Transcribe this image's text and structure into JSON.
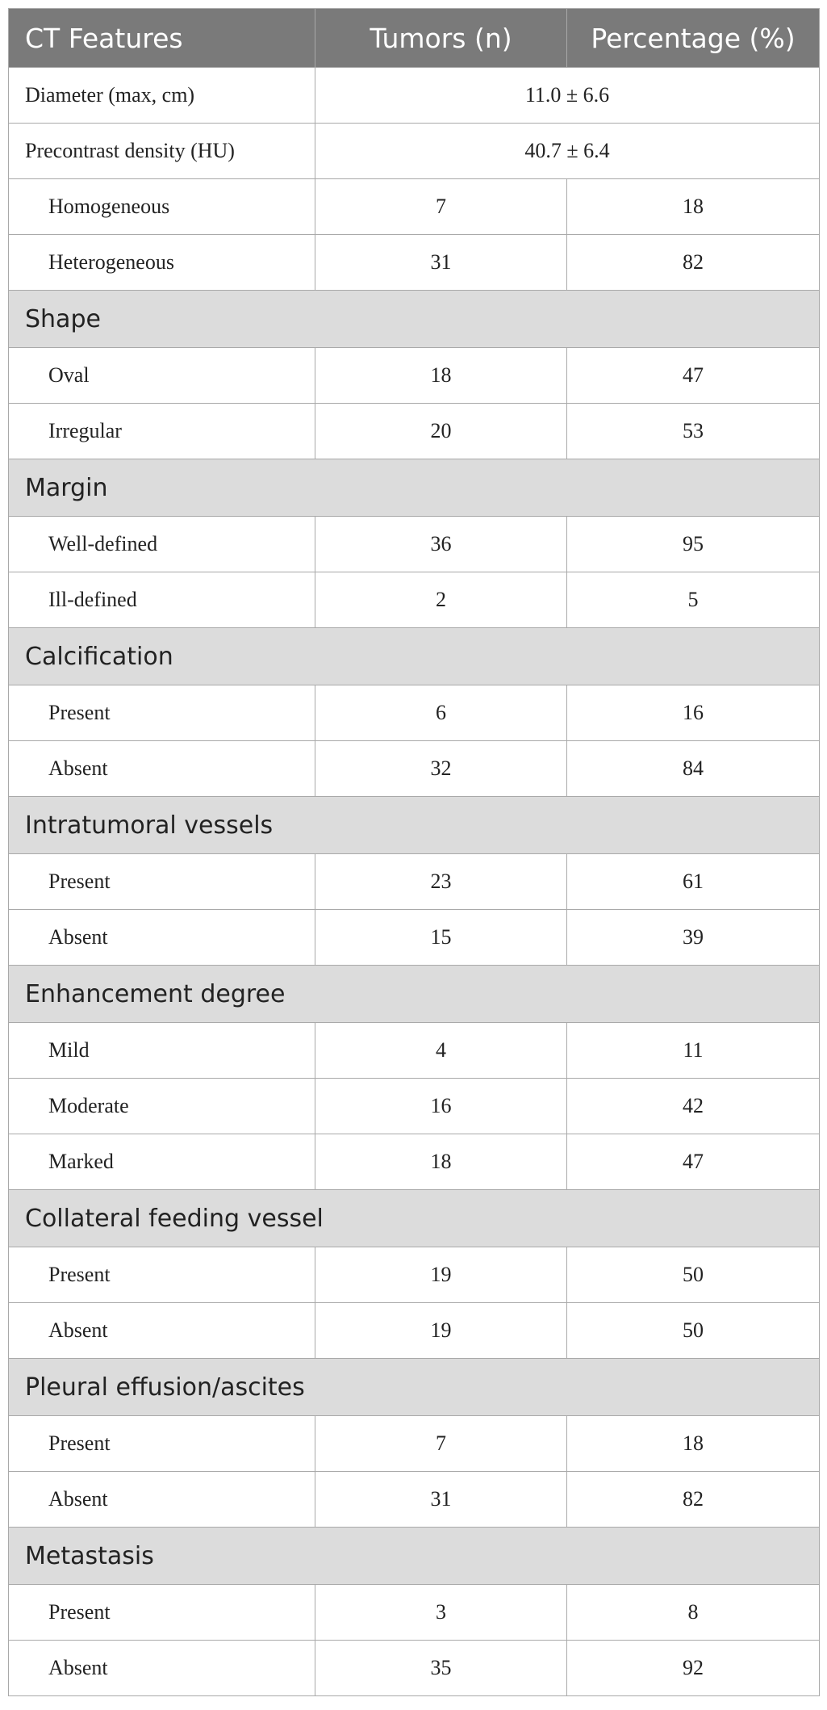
{
  "table": {
    "headers": [
      "CT Features",
      "Tumors (n)",
      "Percentage (%)"
    ],
    "summary_rows": [
      {
        "label": "Diameter (max, cm)",
        "value": "11.0 ± 6.6"
      },
      {
        "label": "Precontrast density (HU)",
        "value": "40.7 ± 6.4"
      }
    ],
    "density_rows": [
      {
        "label": "Homogeneous",
        "n": "7",
        "pct": "18"
      },
      {
        "label": "Heterogeneous",
        "n": "31",
        "pct": "82"
      }
    ],
    "groups": [
      {
        "title": "Shape",
        "rows": [
          {
            "label": "Oval",
            "n": "18",
            "pct": "47"
          },
          {
            "label": "Irregular",
            "n": "20",
            "pct": "53"
          }
        ]
      },
      {
        "title": "Margin",
        "rows": [
          {
            "label": "Well-defined",
            "n": "36",
            "pct": "95"
          },
          {
            "label": "Ill-defined",
            "n": "2",
            "pct": "5"
          }
        ]
      },
      {
        "title": "Calcification",
        "rows": [
          {
            "label": "Present",
            "n": "6",
            "pct": "16"
          },
          {
            "label": "Absent",
            "n": "32",
            "pct": "84"
          }
        ]
      },
      {
        "title": "Intratumoral vessels",
        "rows": [
          {
            "label": "Present",
            "n": "23",
            "pct": "61"
          },
          {
            "label": "Absent",
            "n": "15",
            "pct": "39"
          }
        ]
      },
      {
        "title": "Enhancement degree",
        "rows": [
          {
            "label": "Mild",
            "n": "4",
            "pct": "11"
          },
          {
            "label": "Moderate",
            "n": "16",
            "pct": "42"
          },
          {
            "label": "Marked",
            "n": "18",
            "pct": "47"
          }
        ]
      },
      {
        "title": "Collateral feeding vessel",
        "rows": [
          {
            "label": "Present",
            "n": "19",
            "pct": "50"
          },
          {
            "label": "Absent",
            "n": "19",
            "pct": "50"
          }
        ]
      },
      {
        "title": "Pleural effusion/ascites",
        "rows": [
          {
            "label": "Present",
            "n": "7",
            "pct": "18"
          },
          {
            "label": "Absent",
            "n": "31",
            "pct": "82"
          }
        ]
      },
      {
        "title": "Metastasis",
        "rows": [
          {
            "label": "Present",
            "n": "3",
            "pct": "8"
          },
          {
            "label": "Absent",
            "n": "35",
            "pct": "92"
          }
        ]
      }
    ]
  }
}
